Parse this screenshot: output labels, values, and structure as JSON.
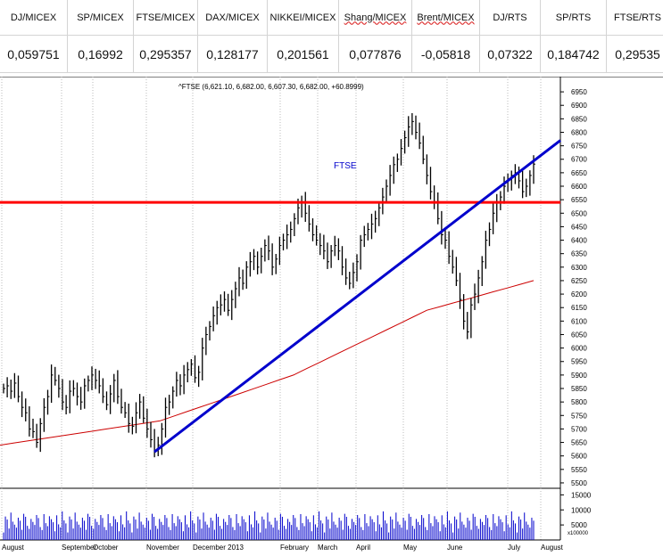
{
  "sheet": {
    "headers": [
      "DJ/MICEX",
      "SP/MICEX",
      "FTSE/MICEX",
      "DAX/MICEX",
      "NIKKEI/MICEX",
      "Shang/MICEX",
      "Brent/MICEX",
      "DJ/RTS",
      "SP/RTS",
      "FTSE/RTS"
    ],
    "values": [
      "0,059751",
      "0,16992",
      "0,295357",
      "0,128177",
      "0,201561",
      "0,077876",
      "-0,05818",
      "0,07322",
      "0,184742",
      "0,29535"
    ]
  },
  "chart_data": {
    "type": "line",
    "title": "FTSE",
    "ohlc_label": "^FTSE (6,621.10, 6,682.00, 6,607.30, 6,682.00, +60.8999)",
    "y_ticks": [
      5500,
      5550,
      5600,
      5650,
      5700,
      5750,
      5800,
      5850,
      5900,
      5950,
      6000,
      6050,
      6100,
      6150,
      6200,
      6250,
      6300,
      6350,
      6400,
      6450,
      6500,
      6550,
      6600,
      6650,
      6700,
      6750,
      6800,
      6850,
      6900,
      6950
    ],
    "ylim": [
      5480,
      6980
    ],
    "x_month_labels": [
      "August",
      "September",
      "October",
      "November",
      "December 2013",
      "February",
      "March",
      "April",
      "May",
      "June",
      "July",
      "August"
    ],
    "volume_ticks": [
      15000,
      10000,
      5000
    ],
    "volume_unit_label": "x100000",
    "series": [
      {
        "kind": "price",
        "color": "#000000",
        "values": [
          5850,
          5860,
          5840,
          5870,
          5820,
          5780,
          5760,
          5700,
          5690,
          5650,
          5720,
          5780,
          5820,
          5900,
          5880,
          5850,
          5800,
          5780,
          5840,
          5850,
          5820,
          5800,
          5860,
          5880,
          5900,
          5880,
          5860,
          5820,
          5790,
          5830,
          5880,
          5820,
          5780,
          5760,
          5720,
          5710,
          5760,
          5800,
          5740,
          5700,
          5660,
          5620,
          5640,
          5700,
          5780,
          5800,
          5840,
          5880,
          5860,
          5900,
          5920,
          5940,
          5890,
          5910,
          6000,
          6050,
          6080,
          6120,
          6150,
          6160,
          6180,
          6140,
          6180,
          6220,
          6260,
          6240,
          6300,
          6320,
          6340,
          6300,
          6340,
          6380,
          6360,
          6300,
          6330,
          6380,
          6400,
          6420,
          6440,
          6480,
          6520,
          6540,
          6500,
          6460,
          6420,
          6400,
          6380,
          6360,
          6320,
          6360,
          6380,
          6360,
          6300,
          6260,
          6240,
          6280,
          6320,
          6400,
          6420,
          6440,
          6460,
          6480,
          6520,
          6560,
          6600,
          6640,
          6680,
          6700,
          6740,
          6780,
          6820,
          6840,
          6800,
          6760,
          6700,
          6640,
          6580,
          6540,
          6480,
          6420,
          6400,
          6340,
          6300,
          6250,
          6180,
          6100,
          6060,
          6160,
          6200,
          6260,
          6320,
          6400,
          6440,
          6500,
          6540,
          6560,
          6600,
          6620,
          6640,
          6650,
          6620,
          6580,
          6600,
          6640,
          6682
        ]
      },
      {
        "kind": "moving-average",
        "color": "#cc0000",
        "start": 5640,
        "end": 6250
      },
      {
        "kind": "support-line",
        "color": "#ff0000",
        "value": 6540
      },
      {
        "kind": "trend-line",
        "color": "#0000cc",
        "from": 5615,
        "to": 6770
      }
    ]
  }
}
